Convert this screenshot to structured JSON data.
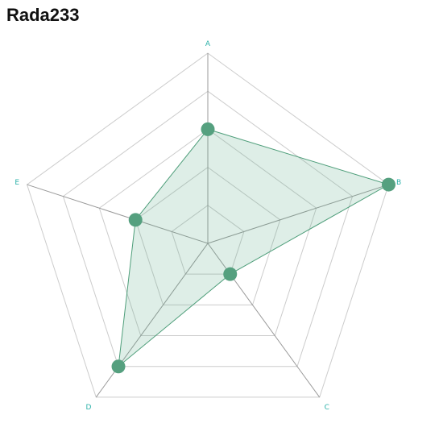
{
  "chart_data": {
    "type": "radar",
    "title": "Rada233",
    "axes": [
      "A",
      "B",
      "C",
      "D",
      "E"
    ],
    "range": [
      0,
      5
    ],
    "rings": 5,
    "series": [
      {
        "values": [
          3,
          5,
          1,
          4,
          2
        ]
      }
    ]
  },
  "colors": {
    "grid": "#cccccc",
    "spoke": "#999999",
    "line": "#4e9e7a",
    "fill": "#5aa886",
    "marker": "#55a07f",
    "axis_label": "#2ab0a8"
  }
}
